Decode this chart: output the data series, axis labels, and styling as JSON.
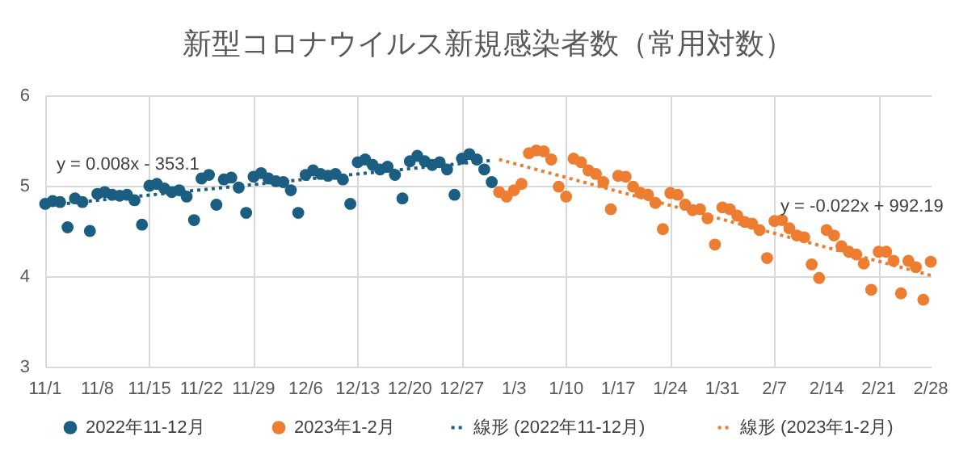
{
  "chart_data": {
    "type": "scatter",
    "title": "新型コロナウイルス新規感染者数（常用対数）",
    "grid": true,
    "legend": "bottom",
    "xlim": [
      "2022-11-01",
      "2023-02-28"
    ],
    "xticks": [
      {
        "value": "2022-11-01",
        "label": "11/1"
      },
      {
        "value": "2022-11-08",
        "label": "11/8"
      },
      {
        "value": "2022-11-15",
        "label": "11/15"
      },
      {
        "value": "2022-11-22",
        "label": "11/22"
      },
      {
        "value": "2022-11-29",
        "label": "11/29"
      },
      {
        "value": "2022-12-06",
        "label": "12/6"
      },
      {
        "value": "2022-12-13",
        "label": "12/13"
      },
      {
        "value": "2022-12-20",
        "label": "12/20"
      },
      {
        "value": "2022-12-27",
        "label": "12/27"
      },
      {
        "value": "2023-01-03",
        "label": "1/3"
      },
      {
        "value": "2023-01-10",
        "label": "1/10"
      },
      {
        "value": "2023-01-17",
        "label": "1/17"
      },
      {
        "value": "2023-01-24",
        "label": "1/24"
      },
      {
        "value": "2023-01-31",
        "label": "1/31"
      },
      {
        "value": "2023-02-07",
        "label": "2/7"
      },
      {
        "value": "2023-02-14",
        "label": "2/14"
      },
      {
        "value": "2023-02-21",
        "label": "2/21"
      },
      {
        "value": "2023-02-28",
        "label": "2/28"
      }
    ],
    "ylim": [
      3,
      6
    ],
    "yticks": [
      3,
      4,
      5,
      6
    ],
    "annotations": [
      "y = 0.008x - 353.1",
      "y = -0.022x + 992.19"
    ],
    "series": [
      {
        "name": "2022年11-12月",
        "marker": "circle",
        "color": "#1b5e82",
        "x": [
          "2022-11-01",
          "2022-11-02",
          "2022-11-03",
          "2022-11-04",
          "2022-11-05",
          "2022-11-06",
          "2022-11-07",
          "2022-11-08",
          "2022-11-09",
          "2022-11-10",
          "2022-11-11",
          "2022-11-12",
          "2022-11-13",
          "2022-11-14",
          "2022-11-15",
          "2022-11-16",
          "2022-11-17",
          "2022-11-18",
          "2022-11-19",
          "2022-11-20",
          "2022-11-21",
          "2022-11-22",
          "2022-11-23",
          "2022-11-24",
          "2022-11-25",
          "2022-11-26",
          "2022-11-27",
          "2022-11-28",
          "2022-11-29",
          "2022-11-30",
          "2022-12-01",
          "2022-12-02",
          "2022-12-03",
          "2022-12-04",
          "2022-12-05",
          "2022-12-06",
          "2022-12-07",
          "2022-12-08",
          "2022-12-09",
          "2022-12-10",
          "2022-12-11",
          "2022-12-12",
          "2022-12-13",
          "2022-12-14",
          "2022-12-15",
          "2022-12-16",
          "2022-12-17",
          "2022-12-18",
          "2022-12-19",
          "2022-12-20",
          "2022-12-21",
          "2022-12-22",
          "2022-12-23",
          "2022-12-24",
          "2022-12-25",
          "2022-12-26",
          "2022-12-27",
          "2022-12-28",
          "2022-12-29",
          "2022-12-30",
          "2022-12-31"
        ],
        "values": [
          4.8,
          4.83,
          4.82,
          4.54,
          4.86,
          4.82,
          4.5,
          4.91,
          4.93,
          4.9,
          4.89,
          4.9,
          4.84,
          4.57,
          5.0,
          5.02,
          4.97,
          4.93,
          4.95,
          4.88,
          4.62,
          5.08,
          5.12,
          4.79,
          5.07,
          5.09,
          4.98,
          4.7,
          5.1,
          5.14,
          5.08,
          5.05,
          5.04,
          4.95,
          4.7,
          5.12,
          5.17,
          5.13,
          5.11,
          5.13,
          5.07,
          4.8,
          5.26,
          5.29,
          5.23,
          5.18,
          5.21,
          5.12,
          4.86,
          5.27,
          5.33,
          5.27,
          5.23,
          5.26,
          5.18,
          4.9,
          5.3,
          5.35,
          5.29,
          5.18,
          5.04
        ]
      },
      {
        "name": "2023年1-2月",
        "marker": "circle",
        "color": "#ed7d31",
        "x": [
          "2023-01-01",
          "2023-01-02",
          "2023-01-03",
          "2023-01-04",
          "2023-01-05",
          "2023-01-06",
          "2023-01-07",
          "2023-01-08",
          "2023-01-09",
          "2023-01-10",
          "2023-01-11",
          "2023-01-12",
          "2023-01-13",
          "2023-01-14",
          "2023-01-15",
          "2023-01-16",
          "2023-01-17",
          "2023-01-18",
          "2023-01-19",
          "2023-01-20",
          "2023-01-21",
          "2023-01-22",
          "2023-01-23",
          "2023-01-24",
          "2023-01-25",
          "2023-01-26",
          "2023-01-27",
          "2023-01-28",
          "2023-01-29",
          "2023-01-30",
          "2023-01-31",
          "2023-02-01",
          "2023-02-02",
          "2023-02-03",
          "2023-02-04",
          "2023-02-05",
          "2023-02-06",
          "2023-02-07",
          "2023-02-08",
          "2023-02-09",
          "2023-02-10",
          "2023-02-11",
          "2023-02-12",
          "2023-02-13",
          "2023-02-14",
          "2023-02-15",
          "2023-02-16",
          "2023-02-17",
          "2023-02-18",
          "2023-02-19",
          "2023-02-20",
          "2023-02-21",
          "2023-02-22",
          "2023-02-23",
          "2023-02-24",
          "2023-02-25",
          "2023-02-26",
          "2023-02-27",
          "2023-02-28"
        ],
        "values": [
          4.93,
          4.88,
          4.95,
          5.02,
          5.36,
          5.39,
          5.38,
          5.29,
          4.99,
          4.88,
          5.3,
          5.26,
          5.17,
          5.13,
          5.04,
          4.74,
          5.11,
          5.1,
          4.99,
          4.92,
          4.9,
          4.81,
          4.52,
          4.92,
          4.9,
          4.79,
          4.73,
          4.74,
          4.64,
          4.35,
          4.76,
          4.74,
          4.67,
          4.6,
          4.58,
          4.51,
          4.2,
          4.61,
          4.62,
          4.53,
          4.45,
          4.43,
          4.13,
          3.98,
          4.51,
          4.45,
          4.33,
          4.27,
          4.24,
          4.14,
          3.85,
          4.27,
          4.27,
          4.17,
          3.81,
          4.17,
          4.1,
          3.74,
          4.16
        ]
      },
      {
        "name": "線形 (2022年11-12月)",
        "type": "line",
        "line_style": "dotted",
        "color": "#1b5e82",
        "x": [
          "2022-11-01",
          "2022-12-31"
        ],
        "values": [
          4.78,
          5.28
        ]
      },
      {
        "name": "線形 (2023年1-2月)",
        "type": "line",
        "line_style": "dotted",
        "color": "#ed7d31",
        "x": [
          "2023-01-01",
          "2023-02-28"
        ],
        "values": [
          5.29,
          4.01
        ]
      }
    ]
  }
}
